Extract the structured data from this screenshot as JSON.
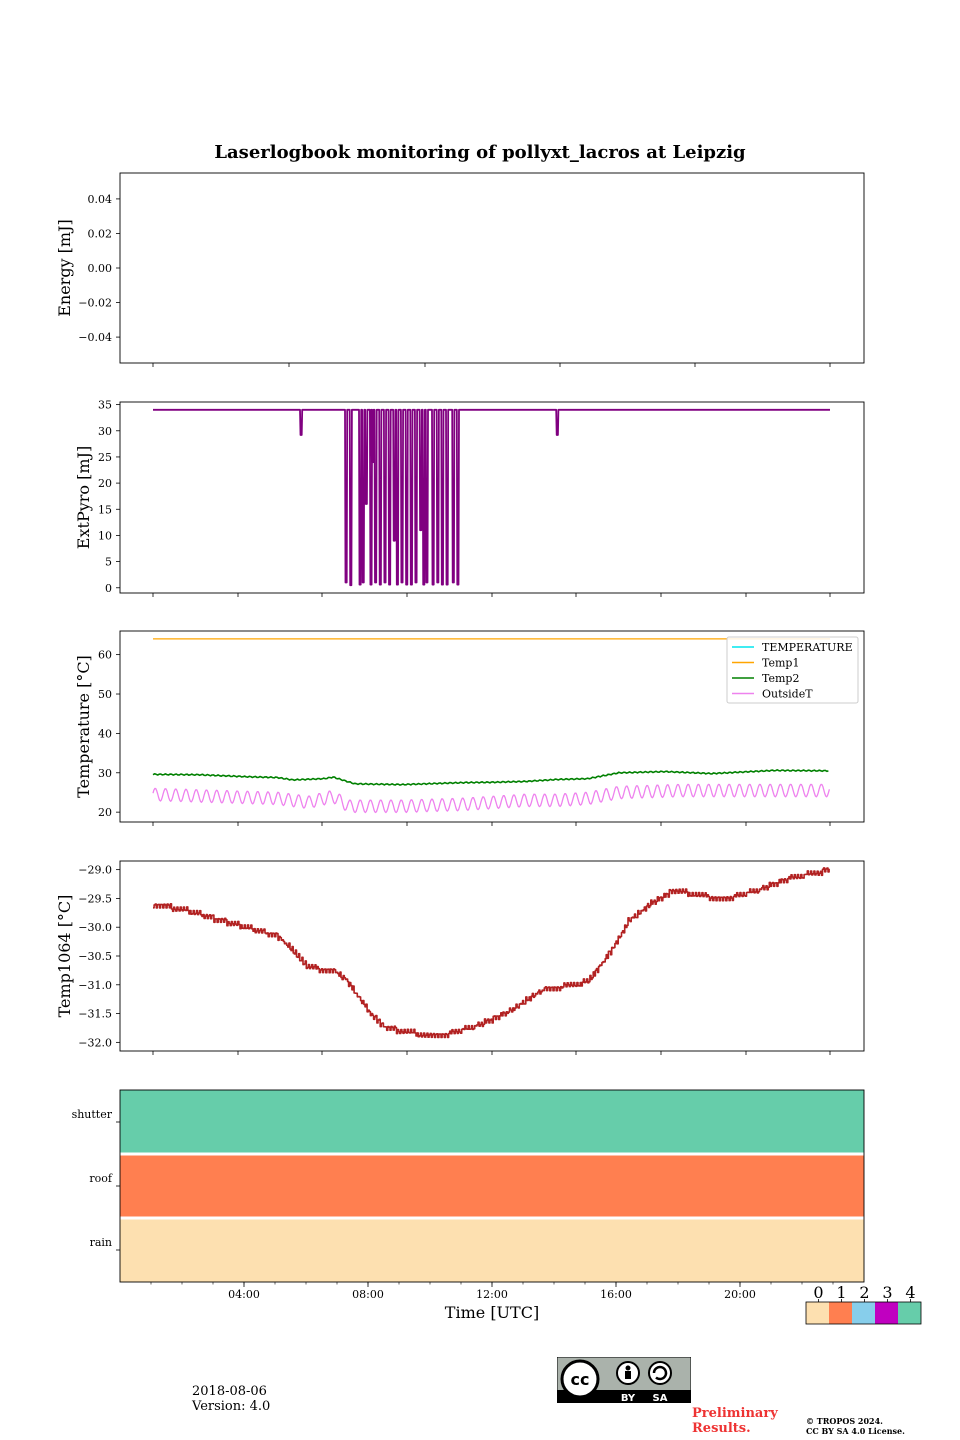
{
  "title": "Laserlogbook monitoring of pollyxt_lacros at Leipzig",
  "footer": {
    "date": "2018-08-06",
    "version": "Version: 4.0",
    "preliminary_line1": "Preliminary",
    "preliminary_line2": "Results.",
    "copyright_line1": "© TROPOS 2024.",
    "copyright_line2": "CC BY SA 4.0 License.",
    "license_badge_left": "BY",
    "license_badge_right": "SA"
  },
  "colorbar": {
    "ticks": [
      "0",
      "1",
      "2",
      "3",
      "4"
    ],
    "colors": [
      "#fde0b0",
      "#ff7f50",
      "#87ceeb",
      "#c000c0",
      "#66cdaa"
    ]
  },
  "chart_data": [
    {
      "type": "line",
      "ylabel": "Energy [mJ]",
      "ylim": [
        -0.055,
        0.055
      ],
      "yticks": [
        "0.04",
        "0.02",
        "0.00",
        "−0.02",
        "−0.04"
      ],
      "ytick_values": [
        0.04,
        0.02,
        0.0,
        -0.02,
        -0.04
      ],
      "series": []
    },
    {
      "type": "line",
      "ylabel": "ExtPyro [mJ]",
      "ylim": [
        -1,
        35.5
      ],
      "yticks": [
        "35",
        "30",
        "25",
        "20",
        "15",
        "10",
        "5",
        "0"
      ],
      "ytick_values": [
        35,
        30,
        25,
        20,
        15,
        10,
        5,
        0
      ],
      "color": "#800080",
      "baseline": 34,
      "x_range_hours": [
        1.0,
        22.8
      ],
      "dips": [
        {
          "x": 5.75,
          "y": 29.2
        },
        {
          "x": 7.2,
          "y": 1
        },
        {
          "x": 7.35,
          "y": 0.5
        },
        {
          "x": 7.65,
          "y": 0.6
        },
        {
          "x": 7.75,
          "y": 1
        },
        {
          "x": 7.85,
          "y": 16
        },
        {
          "x": 8.0,
          "y": 0.6
        },
        {
          "x": 8.05,
          "y": 24
        },
        {
          "x": 8.15,
          "y": 1
        },
        {
          "x": 8.3,
          "y": 0.6
        },
        {
          "x": 8.45,
          "y": 1
        },
        {
          "x": 8.6,
          "y": 0.6
        },
        {
          "x": 8.75,
          "y": 9
        },
        {
          "x": 8.85,
          "y": 0.6
        },
        {
          "x": 9.0,
          "y": 1
        },
        {
          "x": 9.15,
          "y": 0.6
        },
        {
          "x": 9.3,
          "y": 0.6
        },
        {
          "x": 9.45,
          "y": 1
        },
        {
          "x": 9.6,
          "y": 11
        },
        {
          "x": 9.7,
          "y": 0.6
        },
        {
          "x": 9.8,
          "y": 1
        },
        {
          "x": 10.0,
          "y": 0.6
        },
        {
          "x": 10.15,
          "y": 1
        },
        {
          "x": 10.3,
          "y": 0.6
        },
        {
          "x": 10.45,
          "y": 0.6
        },
        {
          "x": 10.65,
          "y": 1
        },
        {
          "x": 10.8,
          "y": 0.6
        },
        {
          "x": 14.0,
          "y": 29.2
        }
      ]
    },
    {
      "type": "line",
      "ylabel": "Temperature [°C]",
      "ylim": [
        17.5,
        66
      ],
      "yticks": [
        "60",
        "50",
        "40",
        "30",
        "20"
      ],
      "ytick_values": [
        60,
        50,
        40,
        30,
        20
      ],
      "legend": [
        "TEMPERATURE",
        "Temp1",
        "Temp2",
        "OutsideT"
      ],
      "legend_colors": [
        "#00e5ee",
        "#ffa500",
        "#008000",
        "#ee82ee"
      ],
      "legend_position": "upper right",
      "series": [
        {
          "name": "Temp1",
          "color": "#ffa500",
          "x": [
            1.0,
            22.8
          ],
          "y": [
            64,
            64
          ]
        },
        {
          "name": "Temp2",
          "color": "#008000",
          "x": [
            1.0,
            2.5,
            4.0,
            5.0,
            5.5,
            6.5,
            6.8,
            7.5,
            9.0,
            11.0,
            12.0,
            13.0,
            14.0,
            15.0,
            16.0,
            17.5,
            19.0,
            20.0,
            21.0,
            22.8
          ],
          "y": [
            29.6,
            29.5,
            29.0,
            28.8,
            28.2,
            28.5,
            28.9,
            27.2,
            27.0,
            27.5,
            27.6,
            27.8,
            28.3,
            28.5,
            30.0,
            30.3,
            29.8,
            30.2,
            30.6,
            30.5
          ]
        },
        {
          "name": "OutsideT",
          "color": "#ee82ee",
          "x": [
            1.0,
            3.0,
            5.0,
            6.0,
            6.8,
            7.3,
            9.0,
            11.0,
            12.0,
            13.0,
            14.0,
            15.0,
            16.0,
            18.0,
            20.0,
            22.8
          ],
          "y": [
            24.5,
            24.0,
            23.5,
            22.5,
            24.0,
            21.5,
            21.5,
            22.0,
            22.5,
            23.0,
            23.0,
            23.5,
            25.0,
            25.5,
            25.5,
            25.5
          ]
        }
      ]
    },
    {
      "type": "line",
      "ylabel": "Temp1064 [°C]",
      "ylim": [
        -32.15,
        -28.85
      ],
      "yticks": [
        "−29.0",
        "−29.5",
        "−30.0",
        "−30.5",
        "−31.0",
        "−31.5",
        "−32.0"
      ],
      "ytick_values": [
        -29.0,
        -29.5,
        -30.0,
        -30.5,
        -31.0,
        -31.5,
        -32.0
      ],
      "series": [
        {
          "name": "Temp1064",
          "color": "#b22222",
          "x": [
            1.0,
            2.0,
            3.0,
            4.0,
            5.0,
            5.5,
            6.0,
            6.8,
            7.2,
            8.0,
            8.5,
            9.5,
            10.5,
            11.5,
            12.5,
            13.5,
            14.5,
            15.0,
            15.5,
            16.0,
            16.3,
            17.0,
            17.8,
            18.5,
            19.5,
            20.5,
            21.5,
            22.8
          ],
          "y": [
            -29.6,
            -29.7,
            -29.85,
            -30.0,
            -30.15,
            -30.4,
            -30.7,
            -30.75,
            -30.9,
            -31.5,
            -31.75,
            -31.85,
            -31.85,
            -31.7,
            -31.45,
            -31.1,
            -31.0,
            -30.95,
            -30.6,
            -30.2,
            -29.9,
            -29.6,
            -29.35,
            -29.45,
            -29.5,
            -29.35,
            -29.15,
            -29.0
          ]
        }
      ]
    },
    {
      "type": "heatmap",
      "xlabel": "Time [UTC]",
      "xticks": [
        "04:00",
        "08:00",
        "12:00",
        "16:00",
        "20:00"
      ],
      "xtick_hours": [
        4,
        8,
        12,
        16,
        20
      ],
      "xlim_hours": [
        0,
        24
      ],
      "rows": [
        "shutter",
        "roof",
        "rain"
      ],
      "row_values": [
        4,
        1,
        0
      ],
      "row_colors": [
        "#66cdaa",
        "#ff7f50",
        "#fde0b0"
      ]
    }
  ]
}
